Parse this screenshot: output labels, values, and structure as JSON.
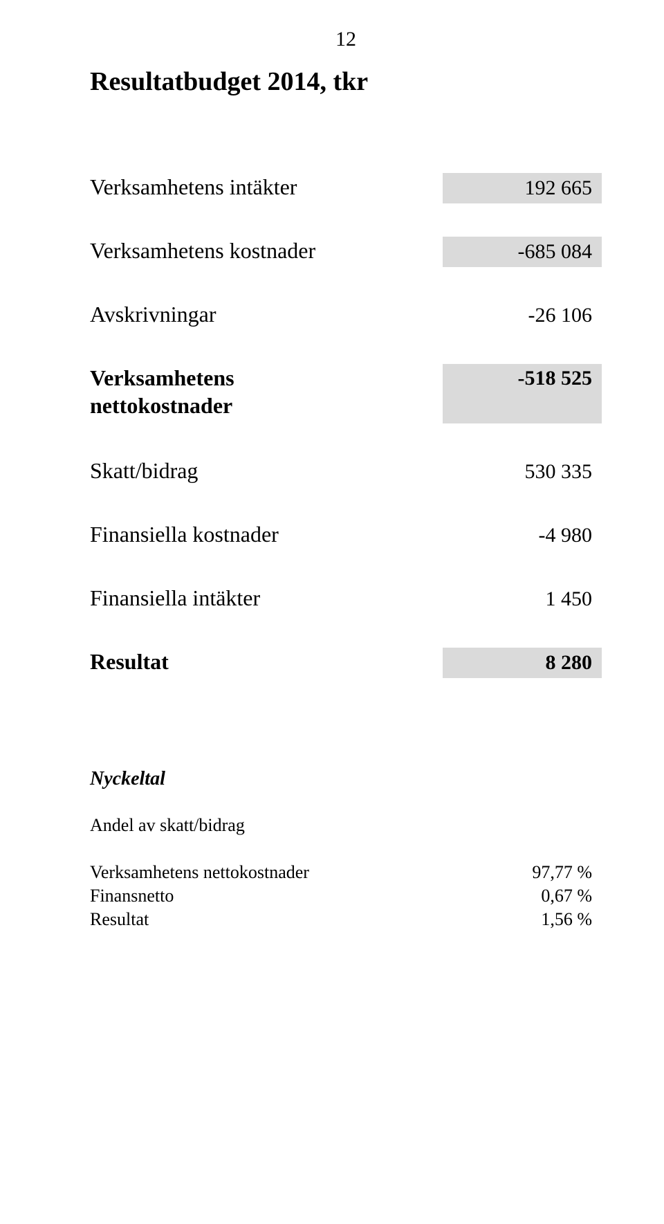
{
  "page_number": "12",
  "title": "Resultatbudget 2014, tkr",
  "rows": [
    {
      "label": "Verksamhetens intäkter",
      "value": "192 665",
      "shaded": true,
      "bold": false,
      "multiline": false
    },
    {
      "label": "Verksamhetens kostnader",
      "value": "-685 084",
      "shaded": true,
      "bold": false,
      "multiline": false
    },
    {
      "label": "Avskrivningar",
      "value": "-26 106",
      "shaded": false,
      "bold": false,
      "multiline": false
    },
    {
      "label": "Verksamhetens\nnettokostnader",
      "value": "-518 525",
      "shaded": true,
      "bold": true,
      "multiline": true
    },
    {
      "label": "Skatt/bidrag",
      "value": "530 335",
      "shaded": false,
      "bold": false,
      "multiline": false
    },
    {
      "label": "Finansiella kostnader",
      "value": "-4 980",
      "shaded": false,
      "bold": false,
      "multiline": false
    },
    {
      "label": "Finansiella intäkter",
      "value": "1 450",
      "shaded": false,
      "bold": false,
      "multiline": false
    },
    {
      "label": "Resultat",
      "value": "8 280",
      "shaded": true,
      "bold": true,
      "multiline": false
    }
  ],
  "kpi": {
    "title": "Nyckeltal",
    "subtitle": "Andel av skatt/bidrag",
    "items": [
      {
        "label": "Verksamhetens nettokostnader",
        "value": "97,77 %"
      },
      {
        "label": "Finansnetto",
        "value": "0,67 %"
      },
      {
        "label": "Resultat",
        "value": "1,56 %"
      }
    ]
  },
  "colors": {
    "shaded_bg": "#dadada",
    "text": "#000000",
    "page_bg": "#ffffff"
  }
}
